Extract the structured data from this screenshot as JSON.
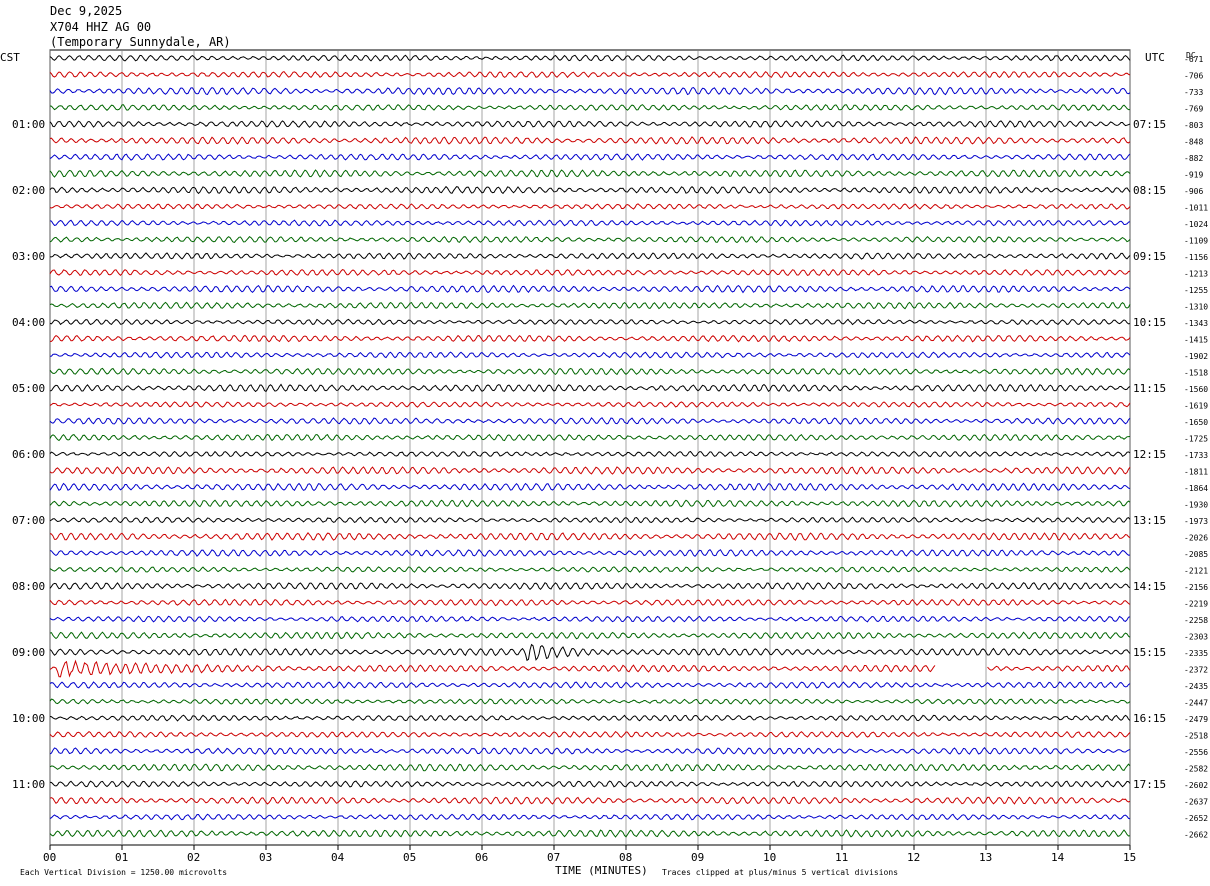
{
  "header": {
    "date": "Dec 9,2025",
    "station": "X704 HHZ AG 00",
    "location": "(Temporary Sunnydale, AR)"
  },
  "left_tz": "CST",
  "right_tz": "UTC",
  "dc_label": "DC",
  "footer": {
    "scale_note": "Each Vertical Division = 1250.00 microvolts",
    "xlabel": "TIME (MINUTES)",
    "clip_note": "Traces clipped at plus/minus 5 vertical divisions"
  },
  "colors": {
    "trace_cycle": [
      "#000000",
      "#cc0000",
      "#0000cc",
      "#006600"
    ],
    "grid": "#808080"
  },
  "chart_data": {
    "type": "line",
    "title": "",
    "x_ticks": [
      "00",
      "01",
      "02",
      "03",
      "04",
      "05",
      "06",
      "07",
      "08",
      "09",
      "10",
      "11",
      "12",
      "13",
      "14",
      "15"
    ],
    "xlim": [
      0,
      15
    ],
    "traces_per_hour": 4,
    "left_hour_labels": [
      "01:00",
      "02:00",
      "03:00",
      "04:00",
      "05:00",
      "06:00",
      "07:00",
      "08:00",
      "09:00",
      "10:00",
      "11:00"
    ],
    "right_hour_labels": [
      "07:15",
      "08:15",
      "09:15",
      "10:15",
      "11:15",
      "12:15",
      "13:15",
      "14:15",
      "15:15",
      "16:15",
      "17:15"
    ],
    "dc_offsets": [
      "-671",
      "-706",
      "-733",
      "-769",
      "-803",
      "-848",
      "-882",
      "-919",
      "-906",
      "-1011",
      "-1024",
      "-1109",
      "-1156",
      "-1213",
      "-1255",
      "-1310",
      "-1343",
      "-1415",
      "-1902",
      "-1518",
      "-1560",
      "-1619",
      "-1650",
      "-1725",
      "-1733",
      "-1811",
      "-1864",
      "-1930",
      "-1973",
      "-2026",
      "-2085",
      "-2121",
      "-2156",
      "-2219",
      "-2258",
      "-2303",
      "-2335",
      "-2372",
      "-2435",
      "-2447",
      "-2479",
      "-2518",
      "-2556",
      "-2582",
      "-2602",
      "-2637",
      "-2652",
      "-2662"
    ],
    "events": [
      {
        "trace": 36,
        "minute_start": 6.6,
        "minute_end": 8.6,
        "note": "burst"
      },
      {
        "trace": 37,
        "minute_start": 0.1,
        "minute_end": 4.0,
        "note": "burst"
      }
    ],
    "gap": {
      "trace": 37,
      "minute_start": 12.3,
      "minute_end": 13.0
    }
  }
}
